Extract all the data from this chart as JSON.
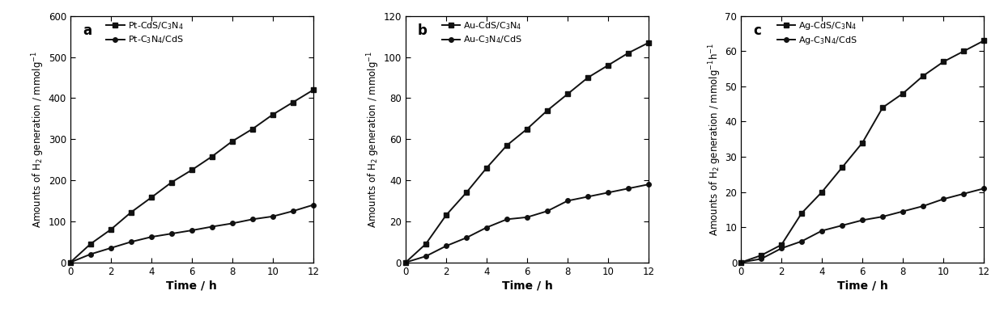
{
  "time": [
    0,
    1,
    2,
    3,
    4,
    5,
    6,
    7,
    8,
    9,
    10,
    11,
    12
  ],
  "panel_a": {
    "label": "a",
    "series1_label": "Pt-CdS/C$_3$N$_4$",
    "series2_label": "Pt-C$_3$N$_4$/CdS",
    "series1_y": [
      0,
      45,
      80,
      122,
      158,
      195,
      225,
      258,
      295,
      325,
      360,
      390,
      420
    ],
    "series2_y": [
      0,
      20,
      35,
      50,
      62,
      70,
      78,
      87,
      95,
      105,
      112,
      125,
      140
    ],
    "ylim": [
      0,
      600
    ],
    "yticks": [
      0,
      100,
      200,
      300,
      400,
      500,
      600
    ],
    "ylabel": "Amounts of H$_2$ generation / mmolg$^{-1}$"
  },
  "panel_b": {
    "label": "b",
    "series1_label": "Au-CdS/C$_3$N$_4$",
    "series2_label": "Au-C$_3$N$_4$/CdS",
    "series1_y": [
      0,
      9,
      23,
      34,
      46,
      57,
      65,
      74,
      82,
      90,
      96,
      102,
      107
    ],
    "series2_y": [
      0,
      3,
      8,
      12,
      17,
      21,
      22,
      25,
      30,
      32,
      34,
      36,
      38
    ],
    "ylim": [
      0,
      120
    ],
    "yticks": [
      0,
      20,
      40,
      60,
      80,
      100,
      120
    ],
    "ylabel": "Amounts of H$_2$ generation / mmolg$^{-1}$"
  },
  "panel_c": {
    "label": "c",
    "series1_label": "Ag-CdS/C$_3$N$_4$",
    "series2_label": "Ag-C$_3$N$_4$/CdS",
    "series1_y": [
      0,
      2,
      5,
      14,
      20,
      27,
      34,
      44,
      48,
      53,
      57,
      60,
      63
    ],
    "series2_y": [
      0,
      1,
      4,
      6,
      9,
      10.5,
      12,
      13,
      14.5,
      16,
      18,
      19.5,
      21
    ],
    "ylim": [
      0,
      70
    ],
    "yticks": [
      0,
      10,
      20,
      30,
      40,
      50,
      60,
      70
    ],
    "ylabel": "Amounts of H$_2$ generation / mmolg$^{-1}$h$^{-1}$"
  },
  "xlabel": "Time / h",
  "xticks": [
    0,
    2,
    4,
    6,
    8,
    10,
    12
  ],
  "line_color": "#111111",
  "marker_square": "s",
  "marker_circle": "o",
  "markersize": 4,
  "linewidth": 1.4,
  "background_color": "#ffffff",
  "label_fontsize": 9,
  "tick_fontsize": 8.5,
  "legend_fontsize": 8,
  "panel_label_fontsize": 12
}
